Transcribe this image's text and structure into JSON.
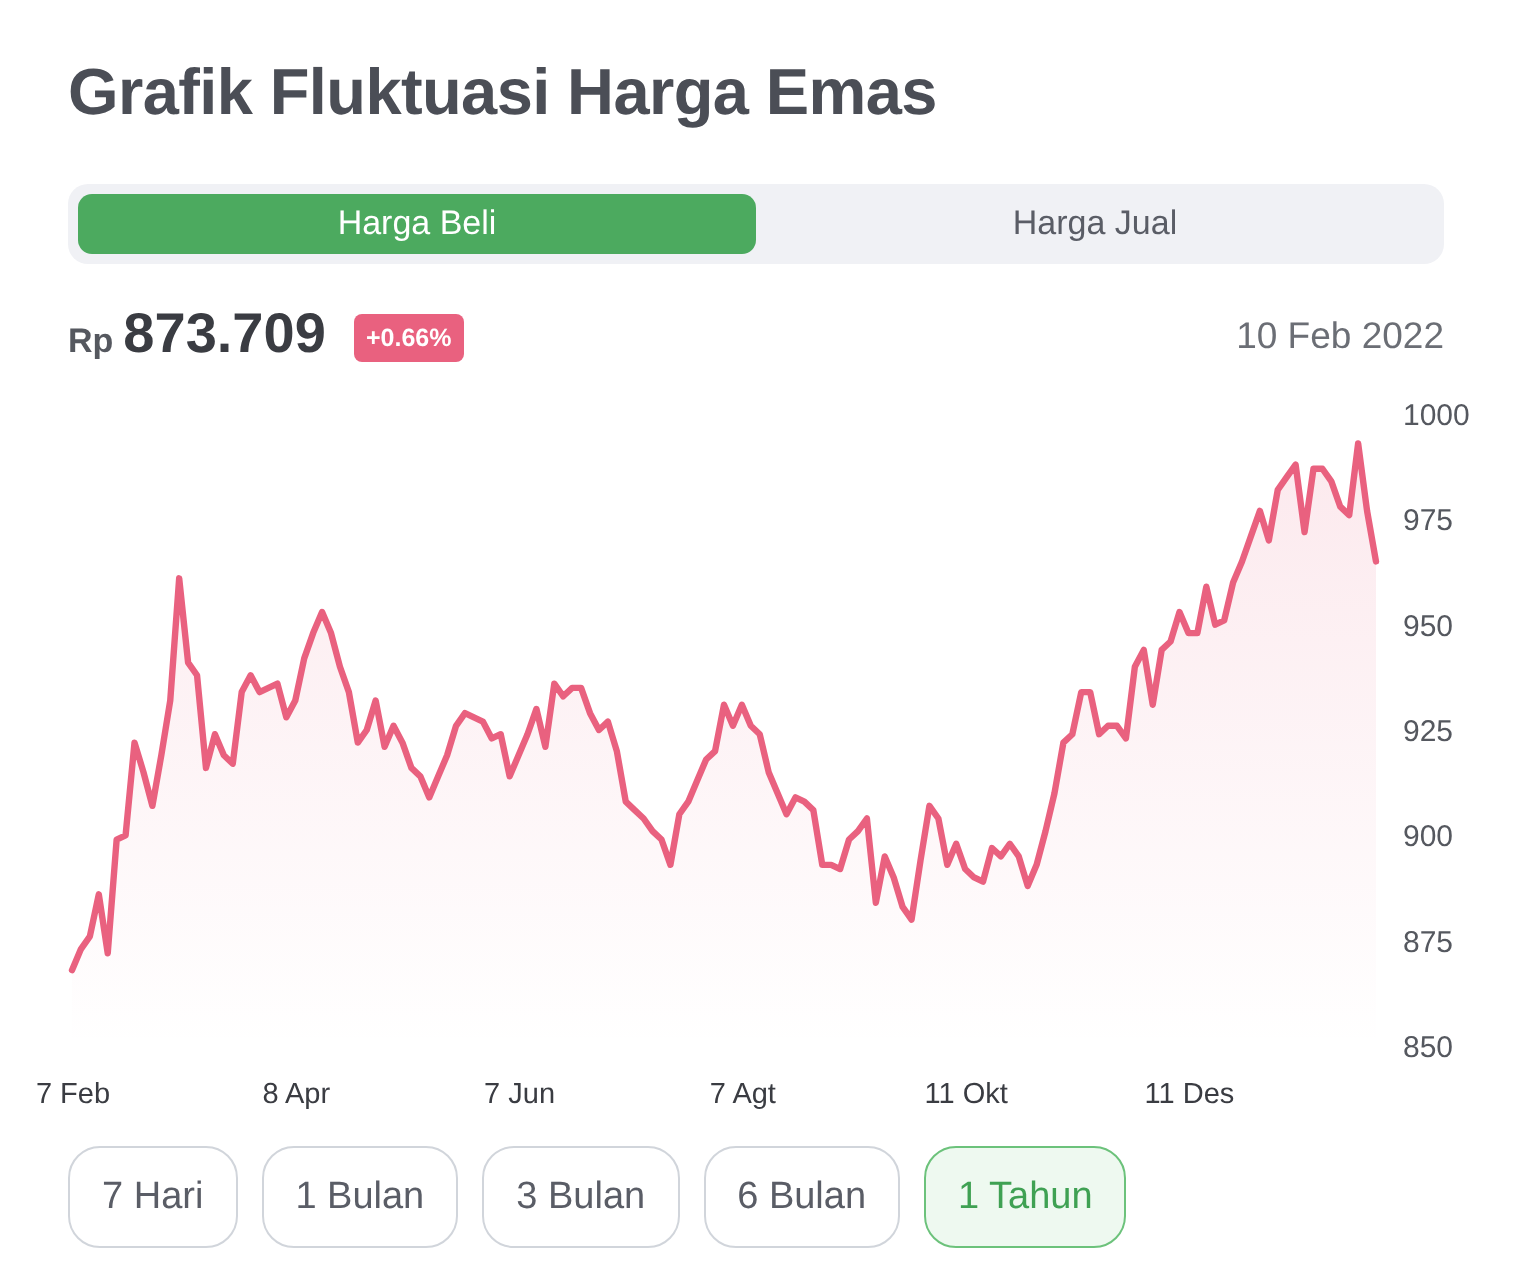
{
  "chart_data": {
    "type": "area",
    "title": "Grafik Fluktuasi Harga Emas",
    "categories": [
      "7 Feb",
      null,
      null,
      null,
      null,
      null,
      null,
      null,
      null,
      null,
      null,
      null,
      null,
      null,
      null,
      null,
      null,
      null,
      null,
      null,
      null,
      null,
      null,
      null,
      null,
      "8 Apr",
      null,
      null,
      null,
      null,
      null,
      null,
      null,
      null,
      null,
      null,
      null,
      null,
      null,
      null,
      null,
      null,
      null,
      null,
      null,
      null,
      null,
      null,
      null,
      null,
      "7 Jun",
      null,
      null,
      null,
      null,
      null,
      null,
      null,
      null,
      null,
      null,
      null,
      null,
      null,
      null,
      null,
      null,
      null,
      null,
      null,
      null,
      null,
      null,
      null,
      null,
      "7 Agt",
      null,
      null,
      null,
      null,
      null,
      null,
      null,
      null,
      null,
      null,
      null,
      null,
      null,
      null,
      null,
      null,
      null,
      null,
      null,
      null,
      null,
      null,
      null,
      null,
      "11 Okt",
      null,
      null,
      null,
      null,
      null,
      null,
      null,
      null,
      null,
      null,
      null,
      null,
      null,
      null,
      null,
      null,
      null,
      null,
      null,
      null,
      null,
      null,
      null,
      null,
      "11 Des",
      null,
      null,
      null,
      null,
      null,
      null,
      null,
      null,
      null,
      null,
      null,
      null,
      null,
      null,
      null,
      null,
      null,
      null,
      null,
      null,
      null
    ],
    "series": [
      {
        "color": "#e9617f",
        "values": [
          868,
          873,
          876,
          886,
          872,
          899,
          900,
          922,
          915,
          907,
          919,
          932,
          961,
          941,
          938,
          916,
          924,
          919,
          917,
          934,
          938,
          934,
          935,
          936,
          928,
          932,
          942,
          948,
          953,
          948,
          940,
          934,
          922,
          925,
          932,
          921,
          926,
          922,
          916,
          914,
          909,
          914,
          919,
          926,
          929,
          928,
          927,
          923,
          924,
          914,
          919,
          924,
          930,
          921,
          936,
          933,
          935,
          935,
          929,
          925,
          927,
          920,
          908,
          906,
          904,
          901,
          899,
          893,
          905,
          908,
          913,
          918,
          920,
          931,
          926,
          931,
          926,
          924,
          915,
          910,
          905,
          909,
          908,
          906,
          893,
          893,
          892,
          899,
          901,
          904,
          884,
          895,
          890,
          883,
          880,
          894,
          907,
          904,
          893,
          898,
          892,
          890,
          889,
          897,
          895,
          898,
          895,
          888,
          893,
          901,
          910,
          922,
          924,
          934,
          934,
          924,
          926,
          926,
          923,
          940,
          944,
          931,
          944,
          946,
          953,
          948,
          948,
          959,
          950,
          951,
          960,
          965,
          971,
          977,
          970,
          982,
          985,
          988,
          972,
          987,
          987,
          984,
          978,
          976,
          993,
          977,
          965
        ]
      }
    ],
    "ylim": [
      850,
      1000
    ],
    "yticks": [
      850,
      875,
      900,
      925,
      950,
      975,
      1000
    ],
    "annotations": [
      "Harga Beli",
      "Harga Jual",
      "Rp 873.709",
      "+0.66%",
      "10 Feb 2022",
      "7 Hari",
      "1 Bulan",
      "3 Bulan",
      "6 Bulan",
      "1 Tahun"
    ]
  }
}
